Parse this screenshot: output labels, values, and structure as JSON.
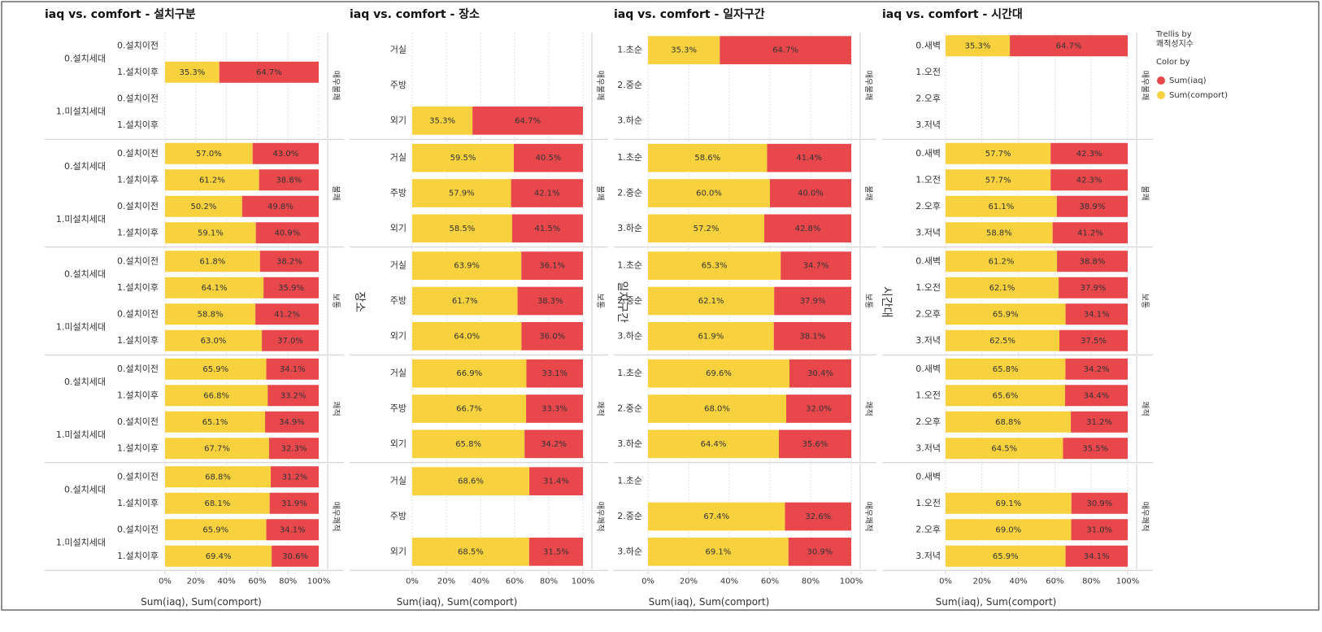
{
  "chart_data": [
    {
      "type": "bar",
      "orientation": "horizontal",
      "stacked": true,
      "grid": true,
      "title": "iaq vs. comfort - 설치구분",
      "xlabel": "Sum(iaq), Sum(comport)",
      "panels": [
        "매우불쾌",
        "불쾌",
        "보통",
        "쾌적",
        "매우쾌적"
      ],
      "groups": [
        "0.설치세대",
        "1.미설치세대"
      ],
      "categories": [
        "0.설치이전",
        "1.설치이후",
        "0.설치이전",
        "1.설치이후",
        "0.설치이전",
        "1.설치이후",
        "0.설치이전",
        "1.설치이후",
        "0.설치이전",
        "1.설치이후",
        "0.설치이전",
        "1.설치이후",
        "0.설치이전",
        "1.설치이후",
        "0.설치이전",
        "1.설치이후",
        "0.설치이전",
        "1.설치이후",
        "0.설치이전",
        "1.설치이후"
      ],
      "xlim": [
        0,
        100
      ],
      "xticks": [
        {
          "value": 0,
          "label": "0%"
        },
        {
          "value": 20,
          "label": "20%"
        },
        {
          "value": 40,
          "label": "40%"
        },
        {
          "value": 60,
          "label": "60%"
        },
        {
          "value": 80,
          "label": "80%"
        },
        {
          "value": 100,
          "label": "100%"
        }
      ],
      "series": [
        {
          "name": "Sum(comport)",
          "color": "#f7d23e",
          "values": [
            null,
            35.3,
            null,
            null,
            57.0,
            61.2,
            50.2,
            59.1,
            61.8,
            64.1,
            58.8,
            63.0,
            65.9,
            66.8,
            65.1,
            67.7,
            68.8,
            68.1,
            65.9,
            69.4
          ],
          "value_labels": [
            null,
            "35.3%",
            null,
            null,
            "57.0%",
            "61.2%",
            "50.2%",
            "59.1%",
            "61.8%",
            "64.1%",
            "58.8%",
            "63.0%",
            "65.9%",
            "66.8%",
            "65.1%",
            "67.7%",
            "68.8%",
            "68.1%",
            "65.9%",
            "69.4%"
          ]
        },
        {
          "name": "Sum(iaq)",
          "color": "#e8474c",
          "values": [
            null,
            64.7,
            null,
            null,
            43.0,
            38.8,
            49.8,
            40.9,
            38.2,
            35.9,
            41.2,
            37.0,
            34.1,
            33.2,
            34.9,
            32.3,
            31.2,
            31.9,
            34.1,
            30.6
          ],
          "value_labels": [
            null,
            "64.7%",
            null,
            null,
            "43.0%",
            "38.8%",
            "49.8%",
            "40.9%",
            "38.2%",
            "35.9%",
            "41.2%",
            "37.0%",
            "34.1%",
            "33.2%",
            "34.9%",
            "32.3%",
            "31.2%",
            "31.9%",
            "34.1%",
            "30.6%"
          ]
        }
      ]
    },
    {
      "type": "bar",
      "orientation": "horizontal",
      "stacked": true,
      "grid": true,
      "title": "iaq vs. comfort - 장소",
      "xlabel": "Sum(iaq), Sum(comport)",
      "ylabel": "장소",
      "panels": [
        "매우불쾌",
        "불쾌",
        "보통",
        "쾌적",
        "매우쾌적"
      ],
      "categories": [
        "거실",
        "주방",
        "외기",
        "거실",
        "주방",
        "외기",
        "거실",
        "주방",
        "외기",
        "거실",
        "주방",
        "외기",
        "거실",
        "주방",
        "외기"
      ],
      "xlim": [
        0,
        100
      ],
      "xticks": [
        {
          "value": 0,
          "label": "0%"
        },
        {
          "value": 20,
          "label": "20%"
        },
        {
          "value": 40,
          "label": "40%"
        },
        {
          "value": 60,
          "label": "60%"
        },
        {
          "value": 80,
          "label": "80%"
        },
        {
          "value": 100,
          "label": "100%"
        }
      ],
      "series": [
        {
          "name": "Sum(comport)",
          "color": "#f7d23e",
          "values": [
            null,
            null,
            35.3,
            59.5,
            57.9,
            58.5,
            63.9,
            61.7,
            64.0,
            66.9,
            66.7,
            65.8,
            68.6,
            null,
            68.5
          ],
          "value_labels": [
            null,
            null,
            "35.3%",
            "59.5%",
            "57.9%",
            "58.5%",
            "63.9%",
            "61.7%",
            "64.0%",
            "66.9%",
            "66.7%",
            "65.8%",
            "68.6%",
            null,
            "68.5%"
          ]
        },
        {
          "name": "Sum(iaq)",
          "color": "#e8474c",
          "values": [
            null,
            null,
            64.7,
            40.5,
            42.1,
            41.5,
            36.1,
            38.3,
            36.0,
            33.1,
            33.3,
            34.2,
            31.4,
            null,
            31.5
          ],
          "value_labels": [
            null,
            null,
            "64.7%",
            "40.5%",
            "42.1%",
            "41.5%",
            "36.1%",
            "38.3%",
            "36.0%",
            "33.1%",
            "33.3%",
            "34.2%",
            "31.4%",
            null,
            "31.5%"
          ]
        }
      ]
    },
    {
      "type": "bar",
      "orientation": "horizontal",
      "stacked": true,
      "grid": true,
      "title": "iaq vs. comfort - 일자구간",
      "xlabel": "Sum(iaq), Sum(comport)",
      "ylabel": "일자구간",
      "panels": [
        "매우불쾌",
        "불쾌",
        "보통",
        "쾌적",
        "매우쾌적"
      ],
      "categories": [
        "1.초순",
        "2.중순",
        "3.하순",
        "1.초순",
        "2.중순",
        "3.하순",
        "1.초순",
        "2.중순",
        "3.하순",
        "1.초순",
        "2.중순",
        "3.하순",
        "1.초순",
        "2.중순",
        "3.하순"
      ],
      "xlim": [
        0,
        100
      ],
      "xticks": [
        {
          "value": 0,
          "label": "0%"
        },
        {
          "value": 20,
          "label": "20%"
        },
        {
          "value": 40,
          "label": "40%"
        },
        {
          "value": 60,
          "label": "60%"
        },
        {
          "value": 80,
          "label": "80%"
        },
        {
          "value": 100,
          "label": "100%"
        }
      ],
      "series": [
        {
          "name": "Sum(comport)",
          "color": "#f7d23e",
          "values": [
            35.3,
            null,
            null,
            58.6,
            60.0,
            57.2,
            65.3,
            62.1,
            61.9,
            69.6,
            68.0,
            64.4,
            null,
            67.4,
            69.1
          ],
          "value_labels": [
            "35.3%",
            null,
            null,
            "58.6%",
            "60.0%",
            "57.2%",
            "65.3%",
            "62.1%",
            "61.9%",
            "69.6%",
            "68.0%",
            "64.4%",
            null,
            "67.4%",
            "69.1%"
          ]
        },
        {
          "name": "Sum(iaq)",
          "color": "#e8474c",
          "values": [
            64.7,
            null,
            null,
            41.4,
            40.0,
            42.8,
            34.7,
            37.9,
            38.1,
            30.4,
            32.0,
            35.6,
            null,
            32.6,
            30.9
          ],
          "value_labels": [
            "64.7%",
            null,
            null,
            "41.4%",
            "40.0%",
            "42.8%",
            "34.7%",
            "37.9%",
            "38.1%",
            "30.4%",
            "32.0%",
            "35.6%",
            null,
            "32.6%",
            "30.9%"
          ]
        }
      ]
    },
    {
      "type": "bar",
      "orientation": "horizontal",
      "stacked": true,
      "grid": true,
      "title": "iaq vs. comfort - 시간대",
      "xlabel": "Sum(iaq), Sum(comport)",
      "ylabel": "시간대",
      "panels": [
        "매우불쾌",
        "불쾌",
        "보통",
        "쾌적",
        "매우쾌적"
      ],
      "categories": [
        "0.새벽",
        "1.오전",
        "2.오후",
        "3.저녁",
        "0.새벽",
        "1.오전",
        "2.오후",
        "3.저녁",
        "0.새벽",
        "1.오전",
        "2.오후",
        "3.저녁",
        "0.새벽",
        "1.오전",
        "2.오후",
        "3.저녁",
        "0.새벽",
        "1.오전",
        "2.오후",
        "3.저녁"
      ],
      "xlim": [
        0,
        100
      ],
      "xticks": [
        {
          "value": 0,
          "label": "0%"
        },
        {
          "value": 20,
          "label": "20%"
        },
        {
          "value": 40,
          "label": "40%"
        },
        {
          "value": 60,
          "label": "60%"
        },
        {
          "value": 80,
          "label": "80%"
        },
        {
          "value": 100,
          "label": "100%"
        }
      ],
      "series": [
        {
          "name": "Sum(comport)",
          "color": "#f7d23e",
          "values": [
            35.3,
            null,
            null,
            null,
            57.7,
            57.7,
            61.1,
            58.8,
            61.2,
            62.1,
            65.9,
            62.5,
            65.8,
            65.6,
            68.8,
            64.5,
            null,
            69.1,
            69.0,
            65.9
          ],
          "value_labels": [
            "35.3%",
            null,
            null,
            null,
            "57.7%",
            "57.7%",
            "61.1%",
            "58.8%",
            "61.2%",
            "62.1%",
            "65.9%",
            "62.5%",
            "65.8%",
            "65.6%",
            "68.8%",
            "64.5%",
            null,
            "69.1%",
            "69.0%",
            "65.9%"
          ]
        },
        {
          "name": "Sum(iaq)",
          "color": "#e8474c",
          "values": [
            64.7,
            null,
            null,
            null,
            42.3,
            42.3,
            38.9,
            41.2,
            38.8,
            37.9,
            34.1,
            37.5,
            34.2,
            34.4,
            31.2,
            35.5,
            null,
            30.9,
            31.0,
            34.1
          ],
          "value_labels": [
            "64.7%",
            null,
            null,
            null,
            "42.3%",
            "42.3%",
            "38.9%",
            "41.2%",
            "38.8%",
            "37.9%",
            "34.1%",
            "37.5%",
            "34.2%",
            "34.4%",
            "31.2%",
            "35.5%",
            null,
            "30.9%",
            "31.0%",
            "34.1%"
          ]
        }
      ]
    }
  ],
  "legend": {
    "title": "Trellis by",
    "field": "쾌적성지수",
    "color_title": "Color by"
  }
}
